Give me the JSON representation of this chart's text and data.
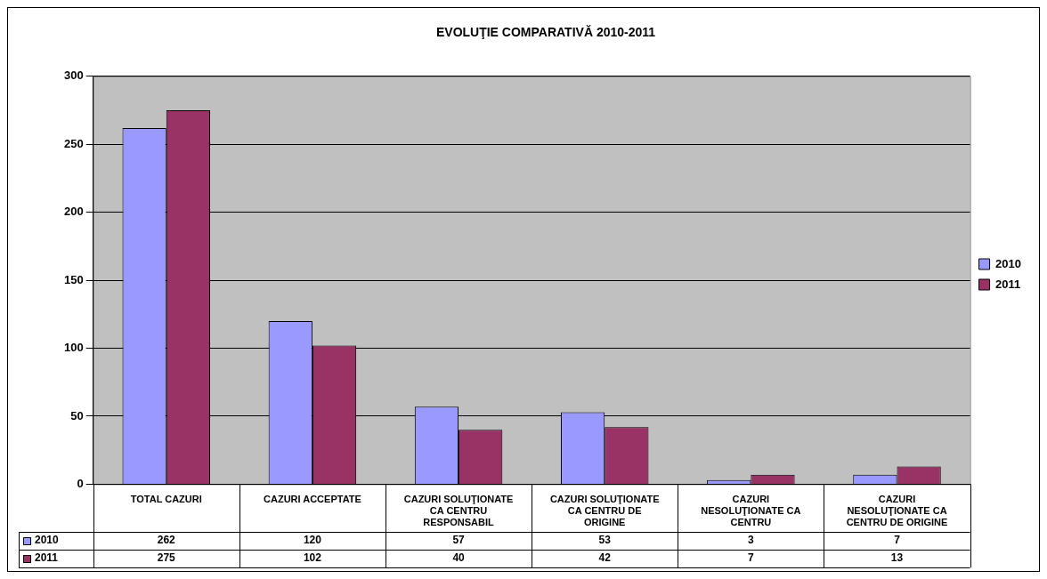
{
  "chart_data": {
    "type": "bar",
    "title": "EVOLUŢIE COMPARATIVĂ 2010-2011",
    "categories": [
      "TOTAL CAZURI",
      "CAZURI ACCEPTATE",
      "CAZURI SOLUŢIONATE CA CENTRU RESPONSABIL",
      "CAZURI SOLUŢIONATE CA CENTRU DE ORIGINE",
      "CAZURI NESOLUŢIONATE CA CENTRU",
      "CAZURI NESOLUŢIONATE CA CENTRU DE ORIGINE"
    ],
    "series": [
      {
        "name": "2010",
        "color": "#9999ff",
        "values": [
          262,
          120,
          57,
          53,
          3,
          7
        ]
      },
      {
        "name": "2011",
        "color": "#993366",
        "values": [
          275,
          102,
          40,
          42,
          7,
          13
        ]
      }
    ],
    "ylim": [
      0,
      300
    ],
    "yticks": [
      0,
      50,
      100,
      150,
      200,
      250,
      300
    ],
    "grid": "y",
    "legend": "right",
    "data_labels": true
  }
}
